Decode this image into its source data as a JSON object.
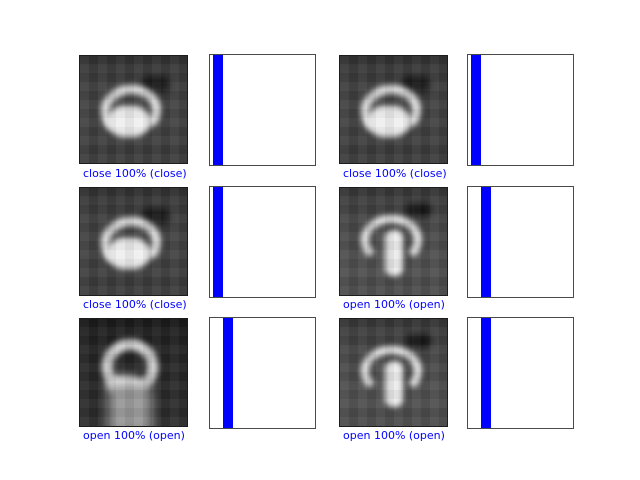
{
  "figure": {
    "type": "matplotlib-prediction-grid",
    "background": "#ffffff",
    "rows": 3,
    "cols": 2
  },
  "colors": {
    "label_text": "#0000ff",
    "bar_fill": "#0000ff",
    "chart_border": "#4a4a4a",
    "image_border": "#1c1c1c"
  },
  "classes": [
    "close",
    "open"
  ],
  "cells": [
    {
      "label": "close 100% (close)",
      "predicted_class": "close",
      "confidence_pct": 100,
      "true_class": "close",
      "bar_slot": 0,
      "image_desc": "blurred grayscale image of a closed fist gesture, dark smudge upper right"
    },
    {
      "label": "close 100% (close)",
      "predicted_class": "close",
      "confidence_pct": 100,
      "true_class": "close",
      "bar_slot": 0,
      "image_desc": "blurred grayscale image of a closed fist gesture, dark smudge upper right"
    },
    {
      "label": "close 100% (close)",
      "predicted_class": "close",
      "confidence_pct": 100,
      "true_class": "close",
      "bar_slot": 0,
      "image_desc": "blurred grayscale image of a closed fist gesture, dark smudge upper right"
    },
    {
      "label": "open 100% (open)",
      "predicted_class": "open",
      "confidence_pct": 100,
      "true_class": "open",
      "bar_slot": 1,
      "image_desc": "blurred grayscale image of an open hand with raised thumb/finger under a bright arch"
    },
    {
      "label": "open 100% (open)",
      "predicted_class": "open",
      "confidence_pct": 100,
      "true_class": "open",
      "bar_slot": 1,
      "image_desc": "blurred grayscale image of an open hand forming a tilted bright ring on dark background"
    },
    {
      "label": "open 100% (open)",
      "predicted_class": "open",
      "confidence_pct": 100,
      "true_class": "open",
      "bar_slot": 1,
      "image_desc": "blurred grayscale image of an open hand with raised thumb/finger under a bright arch"
    }
  ],
  "chart_data": [
    {
      "type": "bar",
      "title": "",
      "categories": [
        "close",
        "open"
      ],
      "values": [
        1.0,
        0.0
      ],
      "ylim": [
        0,
        1
      ],
      "bar_color": "#0000ff",
      "grid": false,
      "ticks": "none",
      "note": "single full-height bar at class slot 0 near left edge"
    },
    {
      "type": "bar",
      "title": "",
      "categories": [
        "close",
        "open"
      ],
      "values": [
        1.0,
        0.0
      ],
      "ylim": [
        0,
        1
      ],
      "bar_color": "#0000ff",
      "grid": false,
      "ticks": "none",
      "note": "single full-height bar at class slot 0 near left edge"
    },
    {
      "type": "bar",
      "title": "",
      "categories": [
        "close",
        "open"
      ],
      "values": [
        1.0,
        0.0
      ],
      "ylim": [
        0,
        1
      ],
      "bar_color": "#0000ff",
      "grid": false,
      "ticks": "none",
      "note": "single full-height bar at class slot 0 near left edge"
    },
    {
      "type": "bar",
      "title": "",
      "categories": [
        "close",
        "open"
      ],
      "values": [
        0.0,
        1.0
      ],
      "ylim": [
        0,
        1
      ],
      "bar_color": "#0000ff",
      "grid": false,
      "ticks": "none",
      "note": "single full-height bar at class slot 1 near left edge"
    },
    {
      "type": "bar",
      "title": "",
      "categories": [
        "close",
        "open"
      ],
      "values": [
        0.0,
        1.0
      ],
      "ylim": [
        0,
        1
      ],
      "bar_color": "#0000ff",
      "grid": false,
      "ticks": "none",
      "note": "single full-height bar at class slot 1 near left edge"
    },
    {
      "type": "bar",
      "title": "",
      "categories": [
        "close",
        "open"
      ],
      "values": [
        0.0,
        1.0
      ],
      "ylim": [
        0,
        1
      ],
      "bar_color": "#0000ff",
      "grid": false,
      "ticks": "none",
      "note": "single full-height bar at class slot 1 near left edge"
    }
  ]
}
